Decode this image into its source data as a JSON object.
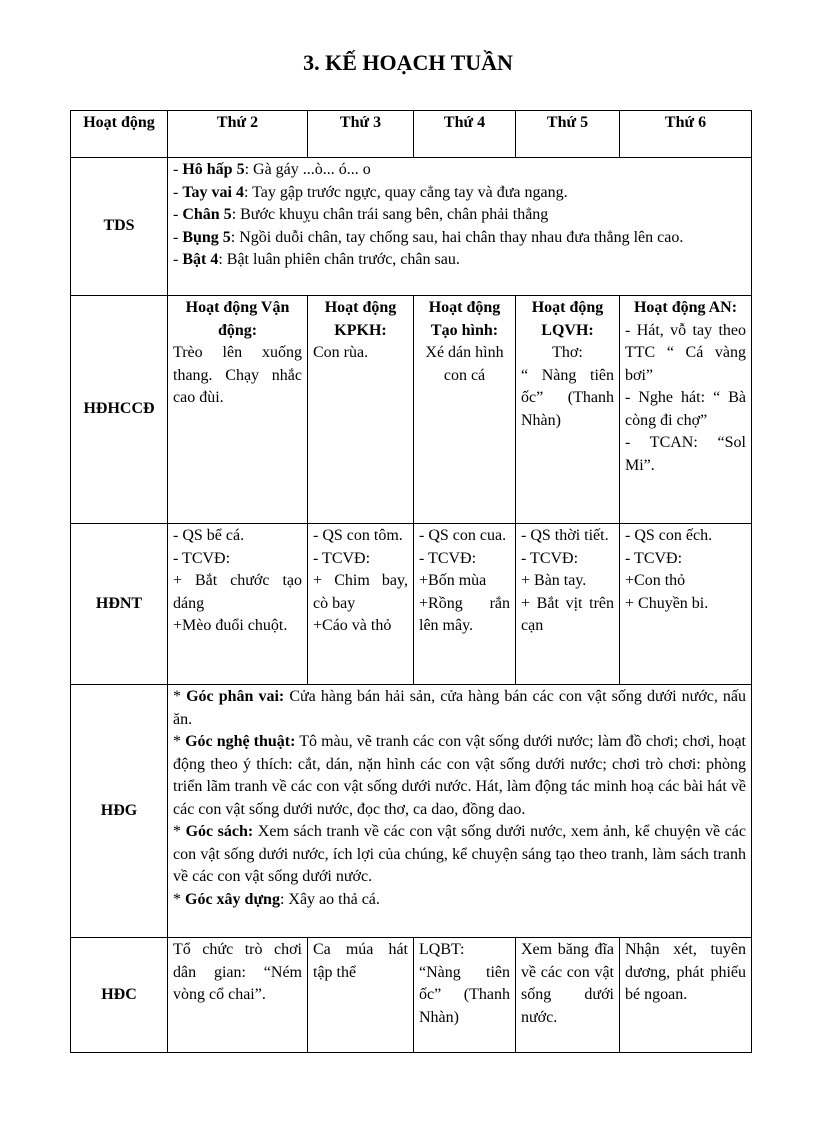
{
  "title": "3. KẾ HOẠCH TUẦN",
  "header": [
    "Hoạt động",
    "Thứ 2",
    "Thứ 3",
    "Thứ 4",
    "Thứ 5",
    "Thứ 6"
  ],
  "tds": {
    "label": "TDS",
    "items": [
      {
        "pre": "- ",
        "b": "Hô hấp 5",
        "t": ": Gà gáy ...ò... ó... o"
      },
      {
        "pre": "- ",
        "b": "Tay vai 4",
        "t": ": Tay gập trước ngực, quay cẳng tay và đưa ngang."
      },
      {
        "pre": "- ",
        "b": "Chân 5",
        "t": ": Bước khuỵu chân trái sang bên, chân phải thẳng"
      },
      {
        "pre": "- ",
        "b": "Bụng 5",
        "t": ": Ngồi duỗi chân, tay chống sau, hai chân thay nhau đưa thẳng lên cao."
      },
      {
        "pre": "- ",
        "b": "Bật 4",
        "t": ": Bật luân phiên chân trước, chân sau."
      }
    ]
  },
  "hdhccd": {
    "label": "HĐHCCĐ",
    "cells": [
      {
        "head": "Hoạt động Vận động:",
        "body": [
          "Trèo lên xuống thang. Chạy nhắc cao đùi."
        ]
      },
      {
        "head": "Hoạt động KPKH:",
        "body": [
          "Con rùa."
        ]
      },
      {
        "head": "Hoạt động Tạo hình:",
        "body": [
          "Xé dán hình con cá"
        ]
      },
      {
        "head": "Hoạt động LQVH:",
        "body": [
          "Thơ:",
          "“ Nàng tiên ốc” (Thanh Nhàn)"
        ]
      },
      {
        "head": "Hoạt động AN:",
        "body": [
          "- Hát, vỗ tay theo TTC “ Cá vàng bơi”",
          "- Nghe hát: “ Bà còng đi chợ”",
          "- TCAN: “Sol Mi”."
        ]
      }
    ]
  },
  "hdnt": {
    "label": "HĐNT",
    "cells": [
      [
        "- QS bể cá.",
        "- TCVĐ:",
        "+ Bắt chước tạo dáng",
        "+Mèo đuổi chuột."
      ],
      [
        "- QS con tôm.",
        "- TCVĐ:",
        "+ Chim bay, cò bay",
        "+Cáo và thỏ"
      ],
      [
        "- QS con cua.",
        "- TCVĐ:",
        "+Bốn mùa",
        "+Rồng rắn lên mây."
      ],
      [
        "- QS thời tiết.",
        "- TCVĐ:",
        "+ Bàn tay.",
        "+ Bắt vịt trên cạn"
      ],
      [
        "- QS con ếch.",
        "- TCVĐ:",
        "+Con thỏ",
        "+ Chuyền bi."
      ]
    ]
  },
  "hdg": {
    "label": "HĐG",
    "items": [
      {
        "pre": "* ",
        "b": "Góc phân vai:",
        "t": " Cửa hàng bán hải sản, cửa hàng bán các con vật sống dưới nước, nấu ăn."
      },
      {
        "pre": "* ",
        "b": "Góc nghệ thuật:",
        "t": " Tô màu, vẽ tranh các con vật sống dưới nước; làm đồ chơi; chơi, hoạt động theo ý thích: cắt, dán, nặn hình các con vật sống dưới nước; chơi trò chơi: phòng triển lãm tranh về các con vật sống dưới nước. Hát, làm động tác minh hoạ các bài hát về các con vật sống dưới nước, đọc thơ, ca dao, đồng dao."
      },
      {
        "pre": "* ",
        "b": "Góc sách:",
        "t": " Xem sách tranh về các con vật sống dưới nước, xem ảnh, kể chuyện về các con vật sống dưới nước, ích lợi của chúng, kể chuyện sáng tạo theo tranh, làm sách tranh về các con vật sống dưới nước."
      },
      {
        "pre": "* ",
        "b": "Góc xây dựng",
        "t": ": Xây ao thả cá."
      }
    ]
  },
  "hdc": {
    "label": "HĐC",
    "cells": [
      "Tổ chức trò chơi dân gian: “Ném vòng cổ chai”.",
      "Ca múa hát tập thể",
      "LQBT: “Nàng tiên ốc” (Thanh Nhàn)",
      "Xem băng đĩa về các con vật sống dưới nước.",
      "Nhận xét, tuyên dương, phát phiếu bé ngoan."
    ]
  }
}
